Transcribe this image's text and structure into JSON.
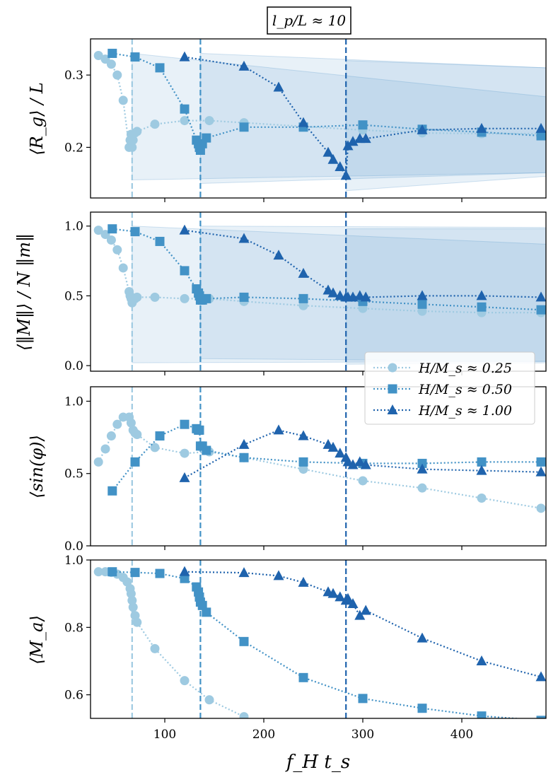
{
  "figure": {
    "title": "l_p/L ≈ 10",
    "xlabel": "f_H t_s",
    "legend_placement": "right, between panels 2 and 3"
  },
  "colors": {
    "s0": "#9ecae1",
    "s1": "#4292c6",
    "s2": "#1f63ad",
    "band": "#4a90c8"
  },
  "chart_data": [
    {
      "type": "line",
      "panel": 1,
      "ylabel": "⟨R_g⟩ / L",
      "xlim": [
        25,
        485
      ],
      "ylim": [
        0.13,
        0.35
      ],
      "yticks": [
        0.2,
        0.3
      ],
      "ytick_labels": [
        "0.2",
        "0.3"
      ],
      "xticks": [
        100,
        200,
        300,
        400
      ],
      "xtick_labels": [],
      "vlines": [
        67,
        136,
        283
      ],
      "bands": [
        {
          "x": [
            67,
            485
          ],
          "upper": [
            0.33,
            0.27
          ],
          "lower": [
            0.155,
            0.165
          ]
        },
        {
          "x": [
            136,
            485
          ],
          "upper": [
            0.33,
            0.31
          ],
          "lower": [
            0.15,
            0.165
          ]
        },
        {
          "x": [
            283,
            485
          ],
          "upper": [
            0.32,
            0.31
          ],
          "lower": [
            0.14,
            0.16
          ]
        }
      ],
      "series": [
        {
          "name": "H/M_s ≈ 0.25",
          "marker": "circle",
          "x": [
            33,
            40,
            46,
            52,
            58,
            64,
            65,
            66,
            67,
            68,
            70,
            72,
            90,
            120,
            145,
            180,
            240,
            300,
            360,
            420,
            480
          ],
          "y": [
            0.327,
            0.322,
            0.315,
            0.3,
            0.265,
            0.2,
            0.21,
            0.218,
            0.2,
            0.21,
            0.22,
            0.222,
            0.232,
            0.237,
            0.237,
            0.234,
            0.229,
            0.224,
            0.22,
            0.219,
            0.219
          ]
        },
        {
          "name": "H/M_s ≈ 0.50",
          "marker": "square",
          "x": [
            47,
            70,
            95,
            120,
            132,
            134,
            135,
            136,
            138,
            142,
            180,
            240,
            300,
            360,
            420,
            480
          ],
          "y": [
            0.33,
            0.325,
            0.31,
            0.253,
            0.21,
            0.205,
            0.2,
            0.196,
            0.205,
            0.213,
            0.228,
            0.228,
            0.231,
            0.225,
            0.221,
            0.216
          ]
        },
        {
          "name": "H/M_s ≈ 1.00",
          "marker": "triangle",
          "x": [
            120,
            180,
            215,
            240,
            265,
            270,
            277,
            283,
            285,
            290,
            297,
            303,
            360,
            420,
            480
          ],
          "y": [
            0.325,
            0.312,
            0.283,
            0.234,
            0.193,
            0.183,
            0.173,
            0.161,
            0.202,
            0.208,
            0.212,
            0.212,
            0.224,
            0.226,
            0.226
          ]
        }
      ]
    },
    {
      "type": "line",
      "panel": 2,
      "ylabel": "⟨‖M‖⟩ / N ‖m‖",
      "xlim": [
        25,
        485
      ],
      "ylim": [
        -0.04,
        1.1
      ],
      "yticks": [
        0.0,
        0.5,
        1.0
      ],
      "ytick_labels": [
        "0.0",
        "0.5",
        "1.0"
      ],
      "xticks": [
        100,
        200,
        300,
        400
      ],
      "xtick_labels": [],
      "vlines": [
        67,
        136,
        283
      ],
      "bands": [
        {
          "x": [
            67,
            485
          ],
          "upper": [
            1.0,
            0.87
          ],
          "lower": [
            0.02,
            0.03
          ]
        },
        {
          "x": [
            136,
            485
          ],
          "upper": [
            1.0,
            0.99
          ],
          "lower": [
            0.05,
            0.03
          ]
        },
        {
          "x": [
            283,
            485
          ],
          "upper": [
            0.98,
            0.98
          ],
          "lower": [
            0.01,
            0.02
          ]
        }
      ],
      "series": [
        {
          "name": "H/M_s ≈ 0.25",
          "marker": "circle",
          "x": [
            33,
            40,
            46,
            52,
            58,
            64,
            65,
            66,
            67,
            68,
            70,
            72,
            90,
            120,
            145,
            180,
            240,
            300,
            360,
            420,
            480
          ],
          "y": [
            0.97,
            0.94,
            0.9,
            0.83,
            0.7,
            0.53,
            0.5,
            0.48,
            0.45,
            0.47,
            0.48,
            0.49,
            0.49,
            0.48,
            0.48,
            0.46,
            0.43,
            0.41,
            0.39,
            0.38,
            0.38
          ]
        },
        {
          "name": "H/M_s ≈ 0.50",
          "marker": "square",
          "x": [
            47,
            70,
            95,
            120,
            132,
            134,
            135,
            136,
            138,
            142,
            180,
            240,
            300,
            360,
            420,
            480
          ],
          "y": [
            0.98,
            0.96,
            0.89,
            0.68,
            0.55,
            0.52,
            0.5,
            0.47,
            0.47,
            0.48,
            0.49,
            0.48,
            0.46,
            0.44,
            0.42,
            0.4
          ]
        },
        {
          "name": "H/M_s ≈ 1.00",
          "marker": "triangle",
          "x": [
            120,
            180,
            215,
            240,
            265,
            270,
            277,
            283,
            285,
            290,
            297,
            303,
            360,
            420,
            480
          ],
          "y": [
            0.97,
            0.91,
            0.79,
            0.66,
            0.54,
            0.52,
            0.5,
            0.49,
            0.49,
            0.49,
            0.5,
            0.49,
            0.5,
            0.5,
            0.49
          ]
        }
      ]
    },
    {
      "type": "line",
      "panel": 3,
      "ylabel": "⟨sin(φ)⟩",
      "xlim": [
        25,
        485
      ],
      "ylim": [
        0.0,
        1.1
      ],
      "yticks": [
        0.0,
        0.5,
        1.0
      ],
      "ytick_labels": [
        "0.0",
        "0.5",
        "1.0"
      ],
      "xticks": [
        100,
        200,
        300,
        400
      ],
      "xtick_labels": [],
      "vlines": [
        67,
        136,
        283
      ],
      "bands": [],
      "series": [
        {
          "name": "H/M_s ≈ 0.25",
          "marker": "circle",
          "x": [
            33,
            40,
            46,
            52,
            58,
            64,
            66,
            68,
            70,
            72,
            90,
            120,
            145,
            180,
            240,
            300,
            360,
            420,
            480
          ],
          "y": [
            0.58,
            0.67,
            0.76,
            0.84,
            0.89,
            0.89,
            0.85,
            0.8,
            0.78,
            0.77,
            0.68,
            0.64,
            0.65,
            0.61,
            0.53,
            0.45,
            0.4,
            0.33,
            0.26
          ]
        },
        {
          "name": "H/M_s ≈ 0.50",
          "marker": "square",
          "x": [
            47,
            70,
            95,
            120,
            132,
            134,
            135,
            136,
            138,
            142,
            180,
            240,
            300,
            360,
            420,
            480
          ],
          "y": [
            0.38,
            0.58,
            0.76,
            0.84,
            0.81,
            0.8,
            0.8,
            0.69,
            0.69,
            0.66,
            0.61,
            0.58,
            0.57,
            0.57,
            0.58,
            0.58
          ]
        },
        {
          "name": "H/M_s ≈ 1.00",
          "marker": "triangle",
          "x": [
            120,
            180,
            215,
            240,
            265,
            270,
            277,
            283,
            285,
            290,
            297,
            303,
            360,
            420,
            480
          ],
          "y": [
            0.47,
            0.7,
            0.8,
            0.76,
            0.7,
            0.68,
            0.64,
            0.61,
            0.58,
            0.56,
            0.58,
            0.56,
            0.53,
            0.52,
            0.51
          ]
        }
      ]
    },
    {
      "type": "line",
      "panel": 4,
      "ylabel": "⟨M_a⟩",
      "xlim": [
        25,
        485
      ],
      "ylim": [
        0.53,
        1.0
      ],
      "yticks": [
        0.6,
        0.8,
        1.0
      ],
      "ytick_labels": [
        "0.6",
        "0.8",
        "1.0"
      ],
      "xticks": [
        100,
        200,
        300,
        400
      ],
      "xtick_labels": [
        "100",
        "200",
        "300",
        "400"
      ],
      "vlines": [
        67,
        136,
        283
      ],
      "bands": [],
      "series": [
        {
          "name": "H/M_s ≈ 0.25",
          "marker": "circle",
          "x": [
            33,
            40,
            46,
            52,
            58,
            62,
            65,
            66,
            67,
            68,
            70,
            72,
            90,
            120,
            145,
            180
          ],
          "y": [
            0.965,
            0.965,
            0.963,
            0.958,
            0.948,
            0.935,
            0.915,
            0.9,
            0.88,
            0.86,
            0.835,
            0.815,
            0.737,
            0.642,
            0.585,
            0.535
          ]
        },
        {
          "name": "H/M_s ≈ 0.50",
          "marker": "square",
          "x": [
            47,
            70,
            95,
            120,
            132,
            134,
            135,
            136,
            138,
            142,
            180,
            240,
            300,
            360,
            420,
            480
          ],
          "y": [
            0.965,
            0.963,
            0.96,
            0.945,
            0.92,
            0.905,
            0.89,
            0.875,
            0.865,
            0.845,
            0.758,
            0.651,
            0.589,
            0.56,
            0.537,
            0.524
          ]
        },
        {
          "name": "H/M_s ≈ 1.00",
          "marker": "triangle",
          "x": [
            120,
            180,
            215,
            240,
            265,
            270,
            277,
            283,
            285,
            290,
            297,
            303,
            360,
            420,
            480
          ],
          "y": [
            0.965,
            0.962,
            0.953,
            0.933,
            0.905,
            0.9,
            0.89,
            0.88,
            0.885,
            0.87,
            0.835,
            0.85,
            0.768,
            0.7,
            0.653
          ]
        }
      ]
    }
  ]
}
